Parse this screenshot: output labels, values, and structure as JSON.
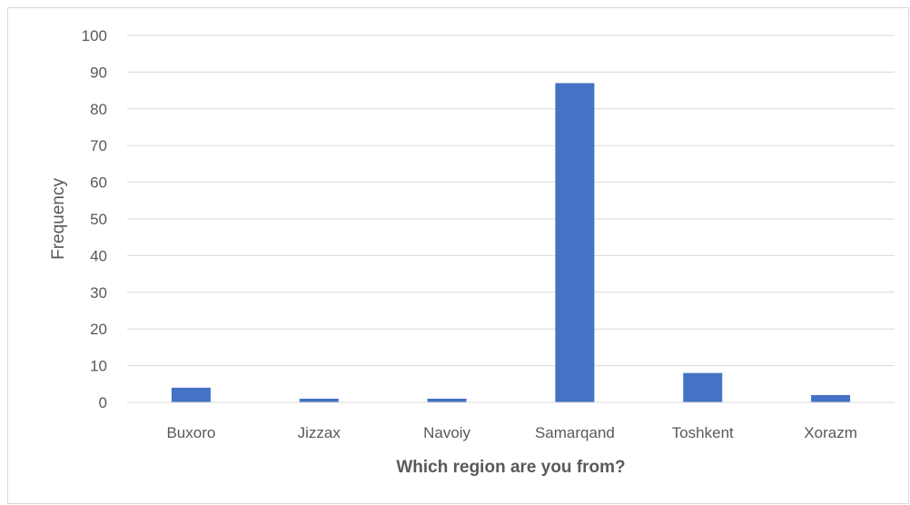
{
  "chart_data": {
    "type": "bar",
    "categories": [
      "Buxoro",
      "Jizzax",
      "Navoiy",
      "Samarqand",
      "Toshkent",
      "Xorazm"
    ],
    "values": [
      4,
      1,
      1,
      87,
      8,
      2
    ],
    "xlabel": "Which region are you from?",
    "ylabel": "Frequency",
    "ylim": [
      0,
      100
    ],
    "yticks": [
      0,
      10,
      20,
      30,
      40,
      50,
      60,
      70,
      80,
      90,
      100
    ],
    "grid": true,
    "legend": "none",
    "bar_color": "#4472c4",
    "grid_color": "#d9d9d9"
  }
}
